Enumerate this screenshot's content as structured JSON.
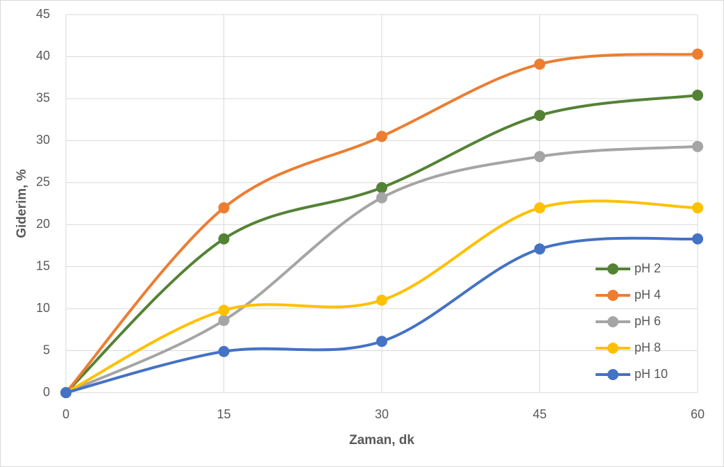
{
  "chart_data": {
    "type": "line",
    "smooth": true,
    "x_label": "Zaman, dk",
    "y_label": "Giderim, %",
    "x": [
      0,
      15,
      30,
      45,
      60
    ],
    "series": [
      {
        "name": "pH 2",
        "color": "#548235",
        "values": [
          0,
          18.3,
          24.4,
          33.0,
          35.4
        ]
      },
      {
        "name": "pH 4",
        "color": "#ed7d31",
        "values": [
          0,
          22.0,
          30.5,
          39.1,
          40.3
        ]
      },
      {
        "name": "pH 6",
        "color": "#a5a5a5",
        "values": [
          0,
          8.6,
          23.2,
          28.1,
          29.3
        ]
      },
      {
        "name": "pH 8",
        "color": "#ffc000",
        "values": [
          0,
          9.8,
          11.0,
          22.0,
          22.0
        ]
      },
      {
        "name": "pH 10",
        "color": "#4472c4",
        "values": [
          0,
          4.9,
          6.1,
          17.1,
          18.3
        ]
      }
    ],
    "xlim": [
      0,
      60
    ],
    "xticks": [
      0,
      15,
      30,
      45,
      60
    ],
    "ylim": [
      0,
      45
    ],
    "yticks": [
      0,
      5,
      10,
      15,
      20,
      25,
      30,
      35,
      40,
      45
    ],
    "grid": true,
    "legend": "lower right"
  }
}
